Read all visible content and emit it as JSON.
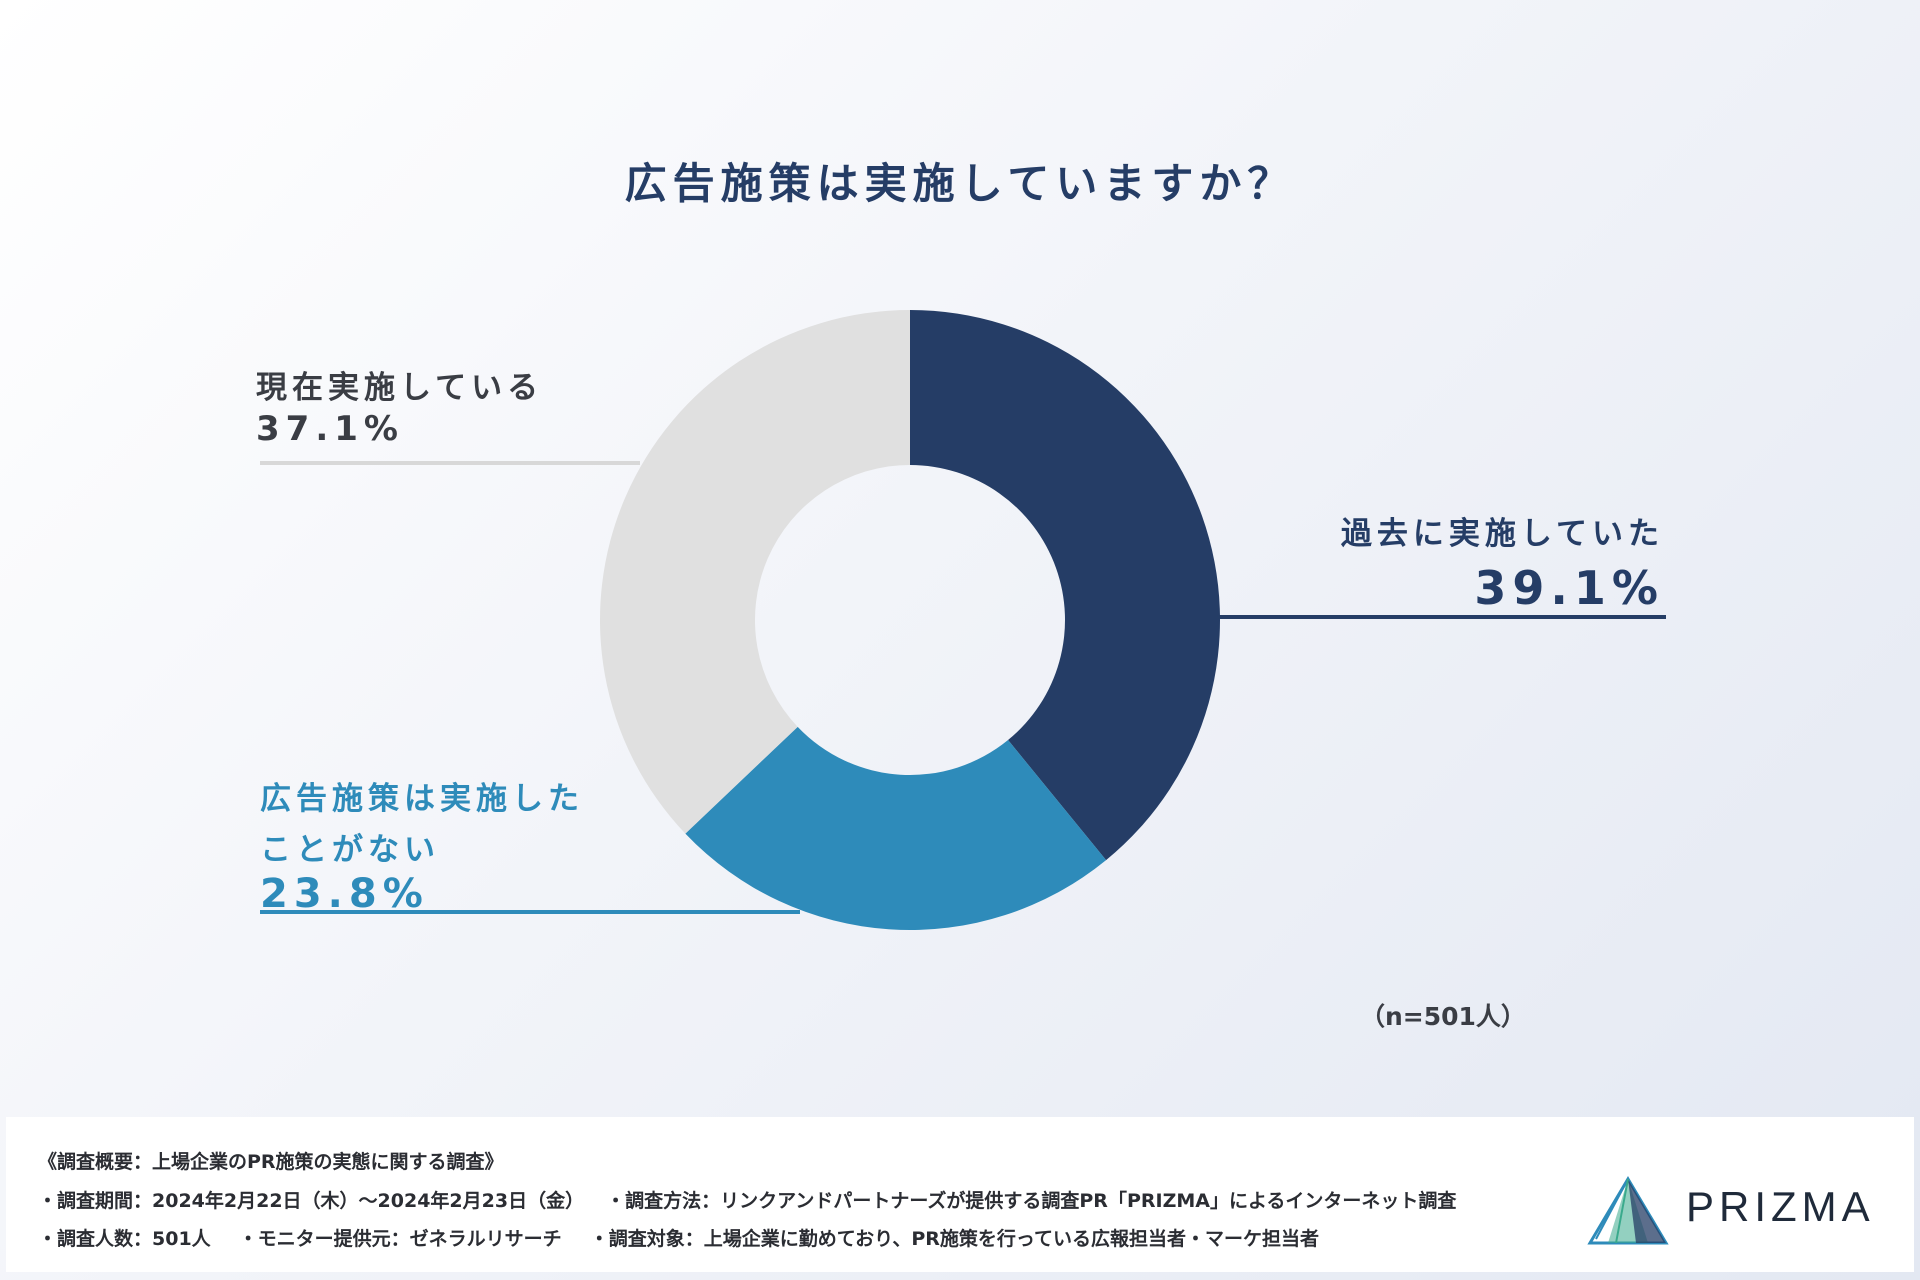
{
  "title": "広告施策は実施していますか？",
  "sample_note": "（n=501人）",
  "chart_data": {
    "type": "pie",
    "title": "広告施策は実施していますか？",
    "categories": [
      "過去に実施していた",
      "広告施策は実施したことがない",
      "現在実施している"
    ],
    "values": [
      39.1,
      23.8,
      37.1
    ],
    "value_labels": [
      "39.1%",
      "23.8%",
      "37.1%"
    ],
    "colors": [
      "#253d66",
      "#2e8bba",
      "#e0e0e0"
    ],
    "donut": true,
    "start_angle_deg": 0,
    "direction": "clockwise",
    "labels": {
      "past": {
        "name_lines": [
          "過去に実施していた"
        ],
        "value": "39.1%"
      },
      "never": {
        "name_lines": [
          "広告施策は実施した",
          "ことがない"
        ],
        "value": "23.8%"
      },
      "current": {
        "name_lines": [
          "現在実施している"
        ],
        "value": "37.1%"
      }
    }
  },
  "footer": {
    "heading": "《調査概要：上場企業のPR施策の実態に関する調査》",
    "period": "・調査期間：2024年2月22日（木）～2024年2月23日（金）",
    "method": "・調査方法：リンクアンドパートナーズが提供する調査PR「PRIZMA」によるインターネット調査",
    "count": "・調査人数：501人",
    "provider": "・モニター提供元：ゼネラルリサーチ",
    "target": "・調査対象：上場企業に勤めており、PR施策を行っている広報担当者・マーケ担当者"
  },
  "brand": {
    "name": "PRIZMA",
    "logo_icon": "prism-triangle-icon",
    "colors": [
      "#2e8bba",
      "#3aaa8c",
      "#253d66"
    ]
  }
}
